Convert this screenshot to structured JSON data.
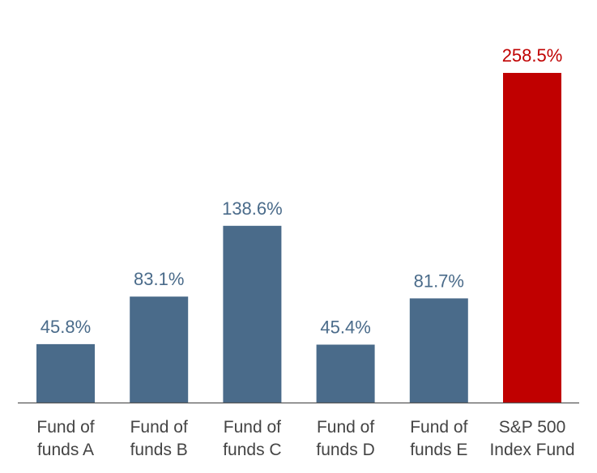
{
  "chart_data": {
    "type": "bar",
    "title": "",
    "xlabel": "",
    "ylabel": "",
    "ylim": [
      0,
      270
    ],
    "categories": [
      [
        "Fund of",
        "funds A"
      ],
      [
        "Fund of",
        "funds B"
      ],
      [
        "Fund of",
        "funds C"
      ],
      [
        "Fund of",
        "funds D"
      ],
      [
        "Fund of",
        "funds E"
      ],
      [
        "S&P 500",
        "Index Fund"
      ]
    ],
    "values": [
      45.8,
      83.1,
      138.6,
      45.4,
      81.7,
      258.5
    ],
    "value_labels": [
      "45.8%",
      "83.1%",
      "138.6%",
      "45.4%",
      "81.7%",
      "258.5%"
    ],
    "bar_colors": [
      "#4a6b8a",
      "#4a6b8a",
      "#4a6b8a",
      "#4a6b8a",
      "#4a6b8a",
      "#c00000"
    ],
    "label_colors": [
      "#4a6b8a",
      "#4a6b8a",
      "#4a6b8a",
      "#4a6b8a",
      "#4a6b8a",
      "#c00000"
    ],
    "axis_color": "#555555",
    "tick_label_color": "#444444",
    "grid": false
  }
}
